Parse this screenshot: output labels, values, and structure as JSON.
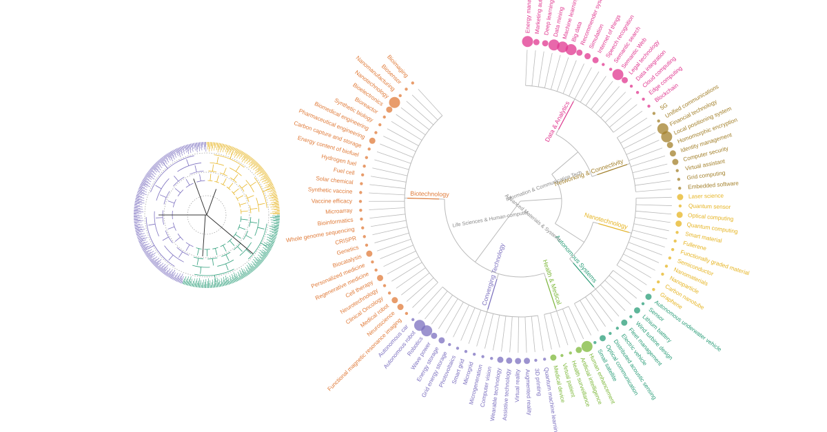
{
  "colors": {
    "biotech": "#e07b39",
    "converging": "#7b6fbf",
    "health": "#7db83a",
    "autonomous": "#2a9d78",
    "nanotech": "#e6b422",
    "networking": "#a3802b",
    "data": "#e0368f",
    "branch": "#b9b9b9"
  },
  "inner_labels": {
    "life_sciences": "Life Sciences & Human-computer",
    "ict": "Information & Communication Tech",
    "advanced": "Advanced Materials & Systems"
  },
  "groups": [
    {
      "key": "data",
      "label": "Data & Analytics",
      "color": "data",
      "terms": [
        {
          "t": "Energy management",
          "v": 3
        },
        {
          "t": "Marketing automation",
          "v": 2
        },
        {
          "t": "Deep learning",
          "v": 2
        },
        {
          "t": "Data mining",
          "v": 3
        },
        {
          "t": "Machine learning",
          "v": 3
        },
        {
          "t": "Big data",
          "v": 3
        },
        {
          "t": "Recommender system",
          "v": 2
        },
        {
          "t": "Simulation",
          "v": 2
        },
        {
          "t": "Internet of things",
          "v": 2
        },
        {
          "t": "Speech recognition",
          "v": 1
        },
        {
          "t": "Semantic search",
          "v": 1
        },
        {
          "t": "Semantic Web",
          "v": 3
        },
        {
          "t": "Legal technology",
          "v": 2
        },
        {
          "t": "Data integration",
          "v": 1
        },
        {
          "t": "Cloud computing",
          "v": 1
        },
        {
          "t": "Edge computing",
          "v": 1
        },
        {
          "t": "Blockchain",
          "v": 1
        }
      ]
    },
    {
      "key": "networking",
      "label": "Networking & Connectivity",
      "color": "networking",
      "terms": [
        {
          "t": "5G",
          "v": 1
        },
        {
          "t": "Unified communications",
          "v": 1
        },
        {
          "t": "Financial technology",
          "v": 3
        },
        {
          "t": "Local positioning system",
          "v": 3
        },
        {
          "t": "Homomorphic encryption",
          "v": 2
        },
        {
          "t": "Identity management",
          "v": 2
        },
        {
          "t": "Computer security",
          "v": 2
        },
        {
          "t": "Virtual assistant",
          "v": 1
        },
        {
          "t": "Grid computing",
          "v": 1
        },
        {
          "t": "Embedded software",
          "v": 1
        }
      ]
    },
    {
      "key": "nanotech",
      "label": "Nanotechnology",
      "color": "nanotech",
      "terms": [
        {
          "t": "Laser science",
          "v": 2
        },
        {
          "t": "Quantum sensor",
          "v": 1
        },
        {
          "t": "Optical computing",
          "v": 2
        },
        {
          "t": "Quantum computing",
          "v": 2
        },
        {
          "t": "Smart material",
          "v": 1
        },
        {
          "t": "Fullerene",
          "v": 1
        },
        {
          "t": "Functionally graded material",
          "v": 1
        },
        {
          "t": "Semiconductor",
          "v": 1
        },
        {
          "t": "Nanomaterials",
          "v": 1
        },
        {
          "t": "Nanoparticle",
          "v": 1
        },
        {
          "t": "Carbon nanotube",
          "v": 1
        },
        {
          "t": "Graphene",
          "v": 1
        }
      ]
    },
    {
      "key": "autonomous",
      "label": "Autonomous Systems",
      "color": "autonomous",
      "terms": [
        {
          "t": "Autonomous underwater vehicle",
          "v": 2
        },
        {
          "t": "Sensor",
          "v": 1
        },
        {
          "t": "Lithium battery",
          "v": 2
        },
        {
          "t": "Wind turbine design",
          "v": 1
        },
        {
          "t": "Fleet management",
          "v": 2
        },
        {
          "t": "Electric vehicle",
          "v": 1
        },
        {
          "t": "Distributed acoustic sensing",
          "v": 1
        },
        {
          "t": "Optical communication",
          "v": 2
        },
        {
          "t": "Small satellite",
          "v": 1
        }
      ]
    },
    {
      "key": "health",
      "label": "Health & Medical",
      "color": "health",
      "terms": [
        {
          "t": "Human enhancement",
          "v": 3
        },
        {
          "t": "Artificial intelligence",
          "v": 2
        },
        {
          "t": "Health surveillance",
          "v": 1
        },
        {
          "t": "Virtual patient",
          "v": 1
        },
        {
          "t": "Medical device",
          "v": 2
        }
      ]
    },
    {
      "key": "converging",
      "label": "Converging Technology",
      "color": "converging",
      "terms": [
        {
          "t": "Quantum machine learning",
          "v": 1
        },
        {
          "t": "3D printing",
          "v": 1
        },
        {
          "t": "Augmented reality",
          "v": 2
        },
        {
          "t": "Virtual reality",
          "v": 2
        },
        {
          "t": "Assistive technology",
          "v": 2
        },
        {
          "t": "Wearable technology",
          "v": 2
        },
        {
          "t": "Computer vision",
          "v": 1
        },
        {
          "t": "Microgeneration",
          "v": 1
        },
        {
          "t": "Microgrid",
          "v": 1
        },
        {
          "t": "Smart grid",
          "v": 1
        },
        {
          "t": "Photovoltaics",
          "v": 1
        },
        {
          "t": "Grid energy storage",
          "v": 1
        },
        {
          "t": "Energy storage",
          "v": 2
        },
        {
          "t": "Wave power",
          "v": 2
        },
        {
          "t": "Robotics",
          "v": 3
        },
        {
          "t": "Autonomous robot",
          "v": 3
        },
        {
          "t": "Autonomous car",
          "v": 1
        }
      ]
    },
    {
      "key": "biotech",
      "label": "Biotechnology",
      "color": "biotech",
      "terms": [
        {
          "t": "Functional magnetic resonance imaging",
          "v": 1
        },
        {
          "t": "Neuroscience",
          "v": 2
        },
        {
          "t": "Medical robot",
          "v": 2
        },
        {
          "t": "Clinical Oncology",
          "v": 1
        },
        {
          "t": "Neurotechnology",
          "v": 1
        },
        {
          "t": "Cell therapy",
          "v": 2
        },
        {
          "t": "Regenerative medicine",
          "v": 1
        },
        {
          "t": "Personalized medicine",
          "v": 1
        },
        {
          "t": "Biocatalysis",
          "v": 2
        },
        {
          "t": "Genetics",
          "v": 1
        },
        {
          "t": "CRISPR",
          "v": 1
        },
        {
          "t": "Whole genome sequencing",
          "v": 1
        },
        {
          "t": "Bioinformatics",
          "v": 1
        },
        {
          "t": "Microarray",
          "v": 1
        },
        {
          "t": "Vaccine efficacy",
          "v": 1
        },
        {
          "t": "Synthetic vaccine",
          "v": 1
        },
        {
          "t": "Solar chemical",
          "v": 1
        },
        {
          "t": "Fuel cell",
          "v": 1
        },
        {
          "t": "Hydrogen fuel",
          "v": 1
        },
        {
          "t": "Energy content of biofuel",
          "v": 1
        },
        {
          "t": "Carbon capture and storage",
          "v": 1
        },
        {
          "t": "Pharmaceutical engineering",
          "v": 2
        },
        {
          "t": "Biomedical engineering",
          "v": 1
        },
        {
          "t": "Synthetic biology",
          "v": 1
        },
        {
          "t": "Bioreactor",
          "v": 1
        },
        {
          "t": "Bioelectronics",
          "v": 2
        },
        {
          "t": "Nanotechnology",
          "v": 3
        },
        {
          "t": "Nanomanufacturing",
          "v": 1
        },
        {
          "t": "Biosensor",
          "v": 1
        },
        {
          "t": "Bioimaging",
          "v": 1
        }
      ]
    }
  ]
}
